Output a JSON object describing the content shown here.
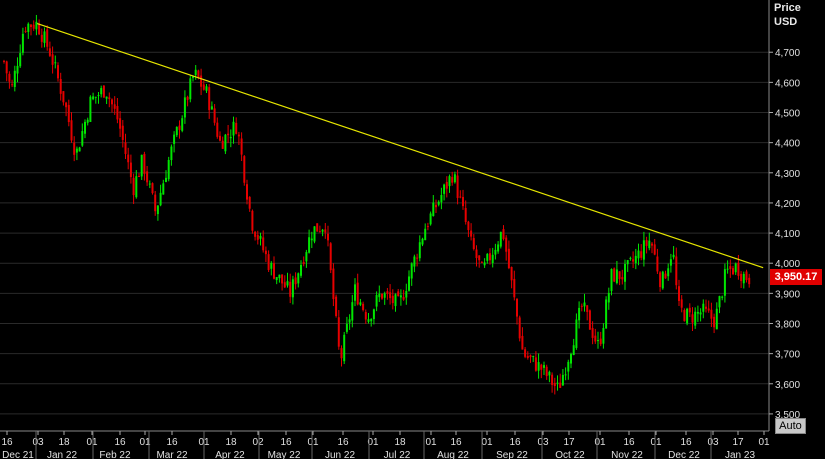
{
  "price_label": "Price",
  "currency_label": "USD",
  "last_price_label": "3,950.17",
  "auto_label": "Auto",
  "colors": {
    "background": "#000000",
    "up": "#00e600",
    "down": "#e60000",
    "trendline": "#e6e600",
    "grid": "#2a2a2a",
    "axis_text": "#e0e0e0"
  },
  "chart_data": {
    "type": "candlestick",
    "title": "",
    "xlabel": "",
    "ylabel": "Price USD",
    "ylim": [
      3440,
      4860
    ],
    "y_ticks": [
      3500,
      3600,
      3700,
      3800,
      3900,
      4000,
      4100,
      4200,
      4300,
      4400,
      4500,
      4600,
      4700
    ],
    "y_tick_labels": [
      "3,500",
      "3,600",
      "3,700",
      "3,800",
      "3,900",
      "4,000",
      "4,100",
      "4,200",
      "4,300",
      "4,400",
      "4,500",
      "4,600",
      "4,700"
    ],
    "x_day_ticks": [
      "16",
      "03",
      "18",
      "01",
      "16",
      "01",
      "16",
      "01",
      "18",
      "02",
      "16",
      "01",
      "16",
      "01",
      "18",
      "01",
      "16",
      "01",
      "16",
      "03",
      "17",
      "01",
      "16",
      "01",
      "16",
      "03",
      "17",
      "01"
    ],
    "x_month_labels": [
      "Dec 21",
      "Jan 22",
      "Feb 22",
      "Mar 22",
      "Apr 22",
      "May 22",
      "Jun 22",
      "Jul 22",
      "Aug 22",
      "Sep 22",
      "Oct 22",
      "Nov 22",
      "Dec 22",
      "Jan 23"
    ],
    "last_price": 3950.17,
    "trendline": {
      "from": {
        "date": "2022-01-03",
        "price": 4795
      },
      "to": {
        "date": "2023-01-31",
        "price": 3985
      }
    },
    "series": [
      {
        "type": "close_path",
        "points": [
          [
            "2021-12-16",
            4670
          ],
          [
            "2021-12-20",
            4570
          ],
          [
            "2021-12-27",
            4790
          ],
          [
            "2022-01-03",
            4795
          ],
          [
            "2022-01-10",
            4700
          ],
          [
            "2022-01-18",
            4530
          ],
          [
            "2022-01-24",
            4360
          ],
          [
            "2022-02-01",
            4540
          ],
          [
            "2022-02-09",
            4580
          ],
          [
            "2022-02-16",
            4470
          ],
          [
            "2022-02-24",
            4250
          ],
          [
            "2022-03-01",
            4340
          ],
          [
            "2022-03-08",
            4170
          ],
          [
            "2022-03-16",
            4360
          ],
          [
            "2022-03-29",
            4630
          ],
          [
            "2022-04-05",
            4560
          ],
          [
            "2022-04-12",
            4400
          ],
          [
            "2022-04-21",
            4460
          ],
          [
            "2022-04-29",
            4140
          ],
          [
            "2022-05-09",
            3990
          ],
          [
            "2022-05-20",
            3900
          ],
          [
            "2022-06-01",
            4110
          ],
          [
            "2022-06-08",
            4130
          ],
          [
            "2022-06-16",
            3670
          ],
          [
            "2022-06-24",
            3910
          ],
          [
            "2022-07-01",
            3820
          ],
          [
            "2022-07-08",
            3900
          ],
          [
            "2022-07-18",
            3860
          ],
          [
            "2022-08-01",
            4120
          ],
          [
            "2022-08-16",
            4300
          ],
          [
            "2022-08-26",
            4060
          ],
          [
            "2022-09-01",
            3970
          ],
          [
            "2022-09-12",
            4110
          ],
          [
            "2022-09-23",
            3700
          ],
          [
            "2022-10-03",
            3650
          ],
          [
            "2022-10-12",
            3580
          ],
          [
            "2022-10-17",
            3680
          ],
          [
            "2022-10-25",
            3860
          ],
          [
            "2022-11-03",
            3720
          ],
          [
            "2022-11-10",
            3960
          ],
          [
            "2022-11-16",
            3960
          ],
          [
            "2022-12-01",
            4080
          ],
          [
            "2022-12-07",
            3930
          ],
          [
            "2022-12-13",
            4050
          ],
          [
            "2022-12-16",
            3850
          ],
          [
            "2022-12-22",
            3820
          ],
          [
            "2022-12-29",
            3840
          ],
          [
            "2023-01-05",
            3810
          ],
          [
            "2023-01-11",
            3970
          ],
          [
            "2023-01-17",
            3990
          ],
          [
            "2023-01-20",
            3960
          ],
          [
            "2023-01-24",
            3950
          ]
        ]
      }
    ]
  }
}
